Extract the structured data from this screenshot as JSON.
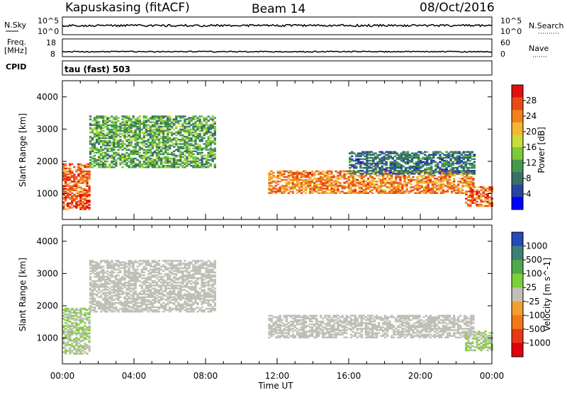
{
  "header": {
    "station": "Kapuskasing (fitACF)",
    "beam": "Beam 14",
    "date": "08/Oct/2016"
  },
  "strip_labels": {
    "nsky": "N.Sky",
    "freq_line1": "Freq.",
    "freq_line2": "[MHz]",
    "cpid": "CPID",
    "nsearch": "N.Search",
    "nave": "Nave",
    "nsky_top_tick": "10^5",
    "nsky_bottom_tick": "10^0",
    "nsearch_top_tick": "10^5",
    "nsearch_bottom_tick": "10^0",
    "freq_top_tick": "18",
    "freq_bottom_tick": "8",
    "nave_top_tick": "60",
    "nave_bottom_tick": "0",
    "cpid_text": "tau (fast) 503"
  },
  "axes": {
    "ylabel": "Slant Range [km]",
    "xlabel": "Time UT",
    "x_ticks": [
      "00:00",
      "04:00",
      "08:00",
      "12:00",
      "16:00",
      "20:00",
      "00:00"
    ],
    "y_ticks": [
      "1000",
      "2000",
      "3000",
      "4000"
    ]
  },
  "power_colorbar": {
    "label": "Power [dB]",
    "ticks": [
      "4",
      "8",
      "12",
      "16",
      "20",
      "24",
      "28"
    ],
    "colors": [
      "#0000ff",
      "#2844a0",
      "#3a6f6a",
      "#45994e",
      "#7ec83a",
      "#c8dc3a",
      "#f2b632",
      "#f08020",
      "#e84a18",
      "#e01010"
    ]
  },
  "velocity_colorbar": {
    "label": "Velocity [m s^-1]",
    "ticks": [
      "1000",
      "500",
      "100",
      "25",
      "-25",
      "-100",
      "-500",
      "-1000"
    ],
    "colors": [
      "#2848b8",
      "#3f7f78",
      "#4fa84a",
      "#7fcf3a",
      "#c0c0b8",
      "#f0a030",
      "#f07818",
      "#e83818",
      "#e00010"
    ]
  },
  "chart_data": [
    {
      "type": "heatmap",
      "title": "Power",
      "x": "Time UT",
      "x_range": [
        "00:00",
        "00:00"
      ],
      "y": "Slant Range [km]",
      "y_range": [
        200,
        4500
      ],
      "color_label": "Power [dB]",
      "color_range": [
        0,
        32
      ],
      "regions": [
        {
          "t_start": 0.0,
          "t_end": 1.5,
          "r_start": 500,
          "r_end": 1900,
          "level": 26
        },
        {
          "t_start": 1.5,
          "t_end": 8.5,
          "r_start": 1800,
          "r_end": 3400,
          "level": 12
        },
        {
          "t_start": 11.5,
          "t_end": 23.0,
          "r_start": 1000,
          "r_end": 1700,
          "level": 24
        },
        {
          "t_start": 16.0,
          "t_end": 23.0,
          "r_start": 1600,
          "r_end": 2300,
          "level": 8
        },
        {
          "t_start": 22.5,
          "t_end": 24.0,
          "r_start": 600,
          "r_end": 1200,
          "level": 26
        }
      ]
    },
    {
      "type": "heatmap",
      "title": "Velocity",
      "x": "Time UT",
      "x_range": [
        "00:00",
        "00:00"
      ],
      "y": "Slant Range [km]",
      "y_range": [
        200,
        4500
      ],
      "color_label": "Velocity [m s^-1]",
      "color_range": [
        -1000,
        1000
      ],
      "regions": [
        {
          "t_start": 0.0,
          "t_end": 1.5,
          "r_start": 500,
          "r_end": 1900,
          "level": 100
        },
        {
          "t_start": 1.5,
          "t_end": 8.5,
          "r_start": 1800,
          "r_end": 3400,
          "level": 0
        },
        {
          "t_start": 11.5,
          "t_end": 23.0,
          "r_start": 1000,
          "r_end": 1700,
          "level": 0
        },
        {
          "t_start": 22.5,
          "t_end": 24.0,
          "r_start": 600,
          "r_end": 1200,
          "level": 100
        }
      ]
    }
  ]
}
